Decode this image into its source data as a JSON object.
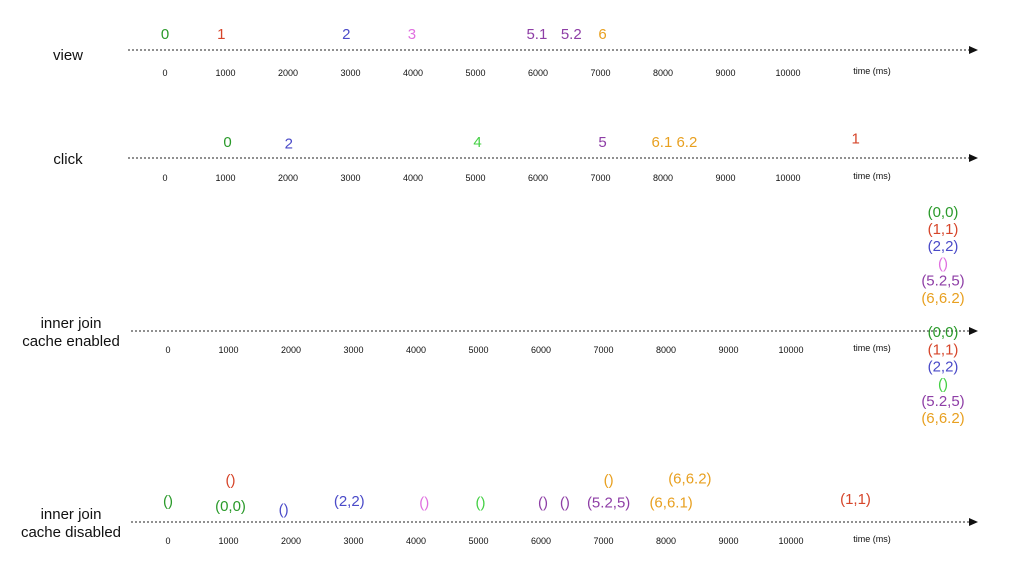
{
  "colors": {
    "green": "#2a9a2a",
    "red": "#d6452a",
    "blue": "#4a4ac8",
    "pink": "#e070e0",
    "purple": "#8e3ea6",
    "orange": "#e8a020",
    "lime": "#44d044"
  },
  "unit_label": "time (ms)",
  "tick_labels": [
    "0",
    "1000",
    "2000",
    "3000",
    "4000",
    "5000",
    "6000",
    "7000",
    "8000",
    "9000",
    "10000"
  ],
  "timelines": [
    {
      "id": "view",
      "label_lines": [
        "view"
      ],
      "events": [
        {
          "text": "0",
          "t": 0,
          "color": "green",
          "row": 0
        },
        {
          "text": "1",
          "t": 900,
          "color": "red",
          "row": 0
        },
        {
          "text": "2",
          "t": 2900,
          "color": "blue",
          "row": 0
        },
        {
          "text": "3",
          "t": 3950,
          "color": "pink",
          "row": 0
        },
        {
          "text": "5.1",
          "t": 5950,
          "color": "purple",
          "row": 0
        },
        {
          "text": "5.2",
          "t": 6500,
          "color": "purple",
          "row": 0
        },
        {
          "text": "6",
          "t": 7000,
          "color": "orange",
          "row": 0
        }
      ]
    },
    {
      "id": "click",
      "label_lines": [
        "click"
      ],
      "events": [
        {
          "text": "0",
          "t": 1000,
          "color": "green",
          "row": 0
        },
        {
          "text": "2",
          "t": 1980,
          "color": "blue",
          "row": -0.1
        },
        {
          "text": "4",
          "t": 5000,
          "color": "lime",
          "row": 0
        },
        {
          "text": "5",
          "t": 7000,
          "color": "purple",
          "row": 0
        },
        {
          "text": "6.1",
          "t": 7950,
          "color": "orange",
          "row": 0
        },
        {
          "text": "6.2",
          "t": 8350,
          "color": "orange",
          "row": 0
        },
        {
          "text": "1",
          "t": 11050,
          "color": "red",
          "row": 0.2
        }
      ]
    },
    {
      "id": "cache-enabled",
      "label_lines": [
        "inner join",
        "cache enabled"
      ],
      "events": [
        {
          "text": "(0,0)",
          "t": 12400,
          "color": "green",
          "row": 6
        },
        {
          "text": "(1,1)",
          "t": 12400,
          "color": "red",
          "row": 5
        },
        {
          "text": "(2,2)",
          "t": 12400,
          "color": "blue",
          "row": 4
        },
        {
          "text": "()",
          "t": 12400,
          "color": "pink",
          "row": 3
        },
        {
          "text": "(5.2,5)",
          "t": 12400,
          "color": "purple",
          "row": 2
        },
        {
          "text": "(6,6.2)",
          "t": 12400,
          "color": "orange",
          "row": 1
        },
        {
          "text": "(0,0)",
          "t": 12400,
          "color": "green",
          "row": -1
        },
        {
          "text": "(1,1)",
          "t": 12400,
          "color": "red",
          "row": -2
        },
        {
          "text": "(2,2)",
          "t": 12400,
          "color": "blue",
          "row": -3
        },
        {
          "text": "()",
          "t": 12400,
          "color": "lime",
          "row": -4
        },
        {
          "text": "(5.2,5)",
          "t": 12400,
          "color": "purple",
          "row": -5
        },
        {
          "text": "(6,6.2)",
          "t": 12400,
          "color": "orange",
          "row": -6
        }
      ]
    },
    {
      "id": "cache-disabled",
      "label_lines": [
        "inner join",
        "cache disabled"
      ],
      "events": [
        {
          "text": "()",
          "t": 0,
          "color": "green",
          "row": 0.3
        },
        {
          "text": "()",
          "t": 1000,
          "color": "red",
          "row": 1.5
        },
        {
          "text": "(0,0)",
          "t": 1000,
          "color": "green",
          "row": 0
        },
        {
          "text": "()",
          "t": 1850,
          "color": "blue",
          "row": -0.2
        },
        {
          "text": "(2,2)",
          "t": 2900,
          "color": "blue",
          "row": 0.3
        },
        {
          "text": "()",
          "t": 4100,
          "color": "pink",
          "row": 0.2
        },
        {
          "text": "()",
          "t": 5000,
          "color": "lime",
          "row": 0.2
        },
        {
          "text": "()",
          "t": 6000,
          "color": "purple",
          "row": 0.2
        },
        {
          "text": "()",
          "t": 6350,
          "color": "purple",
          "row": 0.2
        },
        {
          "text": "()",
          "t": 7050,
          "color": "orange",
          "row": 1.5
        },
        {
          "text": "(5.2,5)",
          "t": 7050,
          "color": "purple",
          "row": 0.2
        },
        {
          "text": "(6,6.1)",
          "t": 8050,
          "color": "orange",
          "row": 0.2
        },
        {
          "text": "(6,6.2)",
          "t": 8350,
          "color": "orange",
          "row": 1.6
        },
        {
          "text": "(1,1)",
          "t": 11000,
          "color": "red",
          "row": 0.4
        }
      ]
    }
  ]
}
